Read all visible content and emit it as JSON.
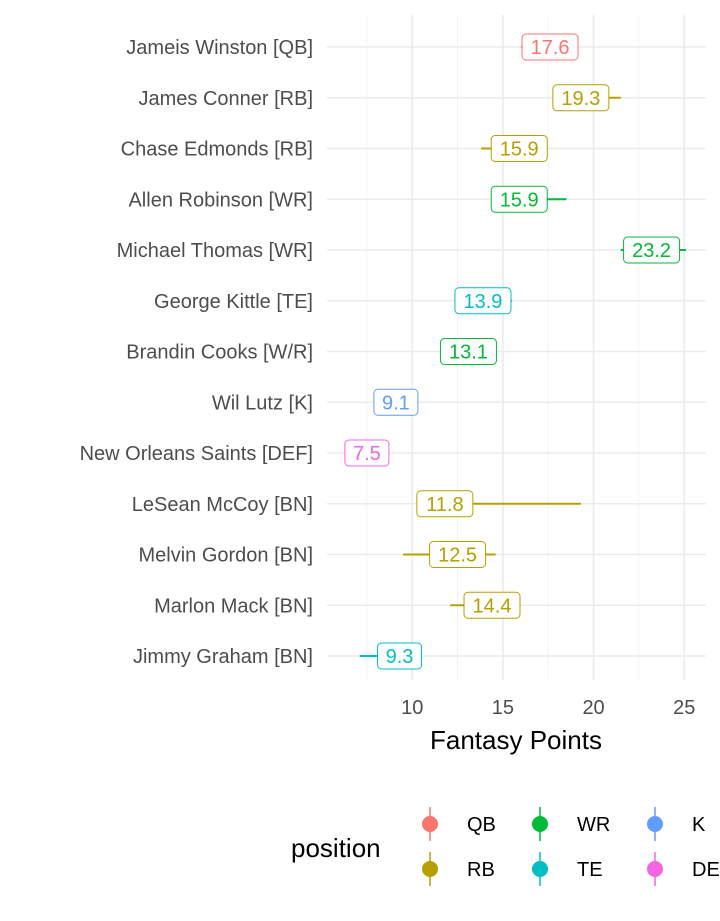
{
  "chart_data": {
    "type": "scatter",
    "subtype": "point-range with value labels",
    "xlabel": "Fantasy Points",
    "ylabel": "",
    "xlim": [
      5.3,
      26.2
    ],
    "xticks": [
      10,
      15,
      20,
      25
    ],
    "grid": true,
    "legend_title": "position",
    "legend_position": "bottom",
    "legend": [
      {
        "name": "QB",
        "color": "#F8766D"
      },
      {
        "name": "WR",
        "color": "#00BA38"
      },
      {
        "name": "K",
        "color": "#619CFF"
      },
      {
        "name": "RB",
        "color": "#B79F00"
      },
      {
        "name": "TE",
        "color": "#00BFC4"
      },
      {
        "name": "DEF",
        "color": "#F564E3"
      }
    ],
    "points": [
      {
        "player": "Jameis Winston [QB]",
        "position": "QB",
        "value": 17.6,
        "label": "17.6",
        "low": 16.0,
        "high": 17.5
      },
      {
        "player": "James Conner [RB]",
        "position": "RB",
        "value": 19.3,
        "label": "19.3",
        "low": 17.8,
        "high": 21.5
      },
      {
        "player": "Chase Edmonds [RB]",
        "position": "RB",
        "value": 15.9,
        "label": "15.9",
        "low": 13.8,
        "high": 17.4
      },
      {
        "player": "Allen Robinson [WR]",
        "position": "WR",
        "value": 15.9,
        "label": "15.9",
        "low": 14.6,
        "high": 18.5
      },
      {
        "player": "Michael Thomas [WR]",
        "position": "WR",
        "value": 23.2,
        "label": "23.2",
        "low": 21.5,
        "high": 25.1
      },
      {
        "player": "George Kittle [TE]",
        "position": "TE",
        "value": 13.9,
        "label": "13.9",
        "low": 13.0,
        "high": 15.5
      },
      {
        "player": "Brandin Cooks [W/R]",
        "position": "WR",
        "value": 13.1,
        "label": "13.1",
        "low": 12.0,
        "high": 14.5
      },
      {
        "player": "Wil Lutz [K]",
        "position": "K",
        "value": 9.1,
        "label": "9.1",
        "low": 8.0,
        "high": 10.2
      },
      {
        "player": "New Orleans Saints [DEF]",
        "position": "DEF",
        "value": 7.5,
        "label": "7.5",
        "low": 6.5,
        "high": 8.6
      },
      {
        "player": "LeSean McCoy [BN]",
        "position": "RB",
        "value": 11.8,
        "label": "11.8",
        "low": 10.5,
        "high": 19.3
      },
      {
        "player": "Melvin Gordon [BN]",
        "position": "RB",
        "value": 12.5,
        "label": "12.5",
        "low": 9.5,
        "high": 14.6
      },
      {
        "player": "Marlon Mack [BN]",
        "position": "RB",
        "value": 14.4,
        "label": "14.4",
        "low": 12.1,
        "high": 15.6
      },
      {
        "player": "Jimmy Graham [BN]",
        "position": "TE",
        "value": 9.3,
        "label": "9.3",
        "low": 7.1,
        "high": 9.8
      }
    ]
  }
}
